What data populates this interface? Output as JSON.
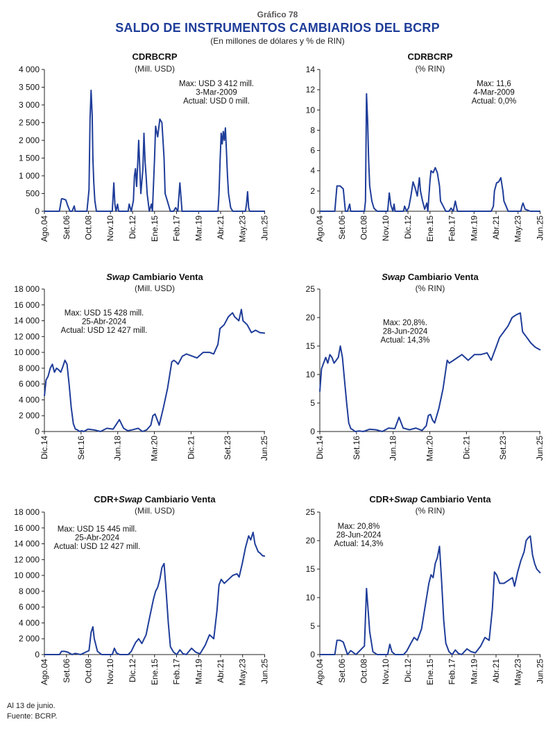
{
  "header": {
    "kicker": "Gráfico 78",
    "title": "SALDO DE INSTRUMENTOS CAMBIARIOS DEL BCRP",
    "subtitle": "(En millones de dólares y % de RIN)"
  },
  "footer": {
    "note": "Al 13 de junio.",
    "source": "Fuente: BCRP."
  },
  "colors": {
    "line": "#1f3d99",
    "axis": "#222222",
    "title": "#1f3d99"
  },
  "chart_data": [
    {
      "type": "line",
      "title": "CDRBCRP",
      "title_italic": "",
      "unit": "(Mill. USD)",
      "ylim": [
        0,
        4000
      ],
      "yticks": [
        0,
        500,
        1000,
        1500,
        2000,
        2500,
        3000,
        3500,
        4000
      ],
      "ytick_labels": [
        "0",
        "500",
        "1 000",
        "1 500",
        "2 000",
        "2 500",
        "3 000",
        "3 500",
        "4 000"
      ],
      "xlim": [
        2004.58,
        2025.45
      ],
      "xtick_positions": [
        2004.58,
        2006.67,
        2008.75,
        2010.83,
        2012.92,
        2015.0,
        2017.08,
        2019.17,
        2021.25,
        2023.33,
        2025.42
      ],
      "xtick_labels": [
        "Ago.04",
        "Set.06",
        "Oct.08",
        "Nov.10",
        "Dic.12",
        "Ene.15",
        "Feb.17",
        "Mar.19",
        "Abr.21",
        "May.23",
        "Jun.25"
      ],
      "annotation": [
        "Max: USD 3 412 mill.",
        "3-Mar-2009",
        "Actual: USD 0 mill."
      ],
      "x": [
        2004.58,
        2006.0,
        2006.2,
        2006.3,
        2006.6,
        2006.8,
        2007.0,
        2007.2,
        2007.4,
        2007.5,
        2007.6,
        2008.0,
        2008.3,
        2008.6,
        2008.8,
        2008.9,
        2009.0,
        2009.1,
        2009.17,
        2009.25,
        2009.35,
        2009.5,
        2009.7,
        2009.9,
        2010.2,
        2010.5,
        2011.0,
        2011.15,
        2011.25,
        2011.35,
        2011.5,
        2011.6,
        2011.7,
        2011.8,
        2012.0,
        2012.3,
        2012.5,
        2012.6,
        2012.8,
        2013.0,
        2013.1,
        2013.2,
        2013.3,
        2013.4,
        2013.5,
        2013.7,
        2013.9,
        2014.0,
        2014.1,
        2014.2,
        2014.3,
        2014.5,
        2014.7,
        2014.8,
        2015.0,
        2015.1,
        2015.3,
        2015.5,
        2015.7,
        2015.9,
        2016.0,
        2016.2,
        2016.5,
        2016.8,
        2017.0,
        2017.2,
        2017.4,
        2017.6,
        2017.8,
        2018.0,
        2018.3,
        2018.6,
        2019.0,
        2019.5,
        2020.0,
        2020.5,
        2020.8,
        2021.0,
        2021.1,
        2021.2,
        2021.3,
        2021.4,
        2021.5,
        2021.6,
        2021.7,
        2021.8,
        2021.9,
        2022.0,
        2022.2,
        2022.4,
        2022.6,
        2022.8,
        2023.0,
        2023.3,
        2023.6,
        2023.7,
        2023.8,
        2023.9,
        2024.0,
        2024.3,
        2024.6,
        2025.0,
        2025.45
      ],
      "y": [
        0,
        0,
        350,
        350,
        320,
        150,
        0,
        0,
        150,
        0,
        0,
        0,
        0,
        0,
        600,
        2600,
        3412,
        2700,
        1500,
        800,
        300,
        0,
        0,
        0,
        0,
        0,
        0,
        800,
        200,
        0,
        200,
        0,
        0,
        0,
        0,
        0,
        0,
        200,
        0,
        300,
        1000,
        1200,
        700,
        1300,
        2000,
        500,
        1200,
        2200,
        1400,
        1000,
        500,
        0,
        200,
        0,
        1500,
        2400,
        2100,
        2600,
        2500,
        1500,
        500,
        300,
        0,
        0,
        100,
        0,
        800,
        0,
        0,
        0,
        0,
        0,
        0,
        0,
        0,
        0,
        0,
        0,
        500,
        1400,
        2200,
        1900,
        2250,
        2000,
        2350,
        1700,
        1000,
        500,
        100,
        0,
        0,
        0,
        0,
        0,
        0,
        200,
        550,
        100,
        0,
        0,
        0,
        0,
        0
      ]
    },
    {
      "type": "line",
      "title": "CDRBCRP",
      "title_italic": "",
      "unit": "(% RIN)",
      "ylim": [
        0,
        14
      ],
      "yticks": [
        0,
        2,
        4,
        6,
        8,
        10,
        12,
        14
      ],
      "ytick_labels": [
        "0",
        "2",
        "4",
        "6",
        "8",
        "10",
        "12",
        "14"
      ],
      "xlim": [
        2004.58,
        2025.45
      ],
      "xtick_positions": [
        2004.58,
        2006.67,
        2008.75,
        2010.83,
        2012.92,
        2015.0,
        2017.08,
        2019.17,
        2021.25,
        2023.33,
        2025.42
      ],
      "xtick_labels": [
        "Ago.04",
        "Set.06",
        "Oct.08",
        "Nov.10",
        "Dic.12",
        "Ene.15",
        "Feb.17",
        "Mar.19",
        "Abr.21",
        "May.23",
        "Jun.25"
      ],
      "annotation": [
        "Max: 11,6",
        "4-Mar-2009",
        "Actual: 0,0%"
      ],
      "x": [
        2004.58,
        2006.0,
        2006.2,
        2006.5,
        2006.8,
        2007.0,
        2007.2,
        2007.4,
        2007.5,
        2008.0,
        2008.5,
        2008.8,
        2008.9,
        2009.0,
        2009.1,
        2009.2,
        2009.3,
        2009.5,
        2009.7,
        2010.0,
        2011.0,
        2011.15,
        2011.3,
        2011.5,
        2011.6,
        2011.7,
        2012.0,
        2012.5,
        2012.6,
        2012.8,
        2013.0,
        2013.2,
        2013.4,
        2013.6,
        2013.8,
        2014.0,
        2014.1,
        2014.3,
        2014.5,
        2014.7,
        2014.8,
        2015.0,
        2015.1,
        2015.3,
        2015.5,
        2015.7,
        2015.9,
        2016.0,
        2016.2,
        2016.5,
        2016.8,
        2017.0,
        2017.2,
        2017.4,
        2017.6,
        2017.8,
        2018.5,
        2019.0,
        2020.0,
        2020.8,
        2021.0,
        2021.1,
        2021.3,
        2021.5,
        2021.7,
        2021.9,
        2022.0,
        2022.2,
        2022.4,
        2022.6,
        2023.0,
        2023.6,
        2023.7,
        2023.8,
        2024.0,
        2024.5,
        2025.0,
        2025.45
      ],
      "y": [
        0,
        0,
        2.5,
        2.5,
        2.2,
        0,
        0,
        0.7,
        0,
        0,
        0,
        0,
        1.0,
        11.6,
        9.0,
        5.0,
        2.5,
        1.0,
        0.3,
        0,
        0,
        1.8,
        0.6,
        0,
        0.7,
        0,
        0,
        0,
        0.5,
        0,
        0.4,
        1.5,
        2.9,
        2.3,
        1.5,
        3.3,
        2.0,
        1.0,
        0.2,
        0.8,
        0,
        3.0,
        4.0,
        3.8,
        4.3,
        3.8,
        2.5,
        1.0,
        0.6,
        0,
        0,
        0.3,
        0,
        1.0,
        0,
        0,
        0,
        0,
        0,
        0,
        0.5,
        2.0,
        2.8,
        2.9,
        3.3,
        2.0,
        1.0,
        0.5,
        0,
        0,
        0,
        0,
        0.5,
        0.8,
        0.2,
        0,
        0,
        0
      ]
    },
    {
      "type": "line",
      "title": "Cambiario Venta",
      "title_italic": "Swap",
      "unit": "(Mill. USD)",
      "ylim": [
        0,
        18000
      ],
      "yticks": [
        0,
        2000,
        4000,
        6000,
        8000,
        10000,
        12000,
        14000,
        16000,
        18000
      ],
      "ytick_labels": [
        "0",
        "2 000",
        "4 000",
        "6 000",
        "8 000",
        "10 000",
        "12 000",
        "14 000",
        "16 000",
        "18 000"
      ],
      "xlim": [
        2014.92,
        2025.45
      ],
      "xtick_positions": [
        2014.92,
        2016.67,
        2018.42,
        2020.17,
        2021.92,
        2023.67,
        2025.42
      ],
      "xtick_labels": [
        "Dic.14",
        "Set.16",
        "Jun.18",
        "Mar.20",
        "Dic.21",
        "Set.23",
        "Jun.25"
      ],
      "annotation": [
        "Max: USD 15 428 mill.",
        "25-Abr-2024",
        "Actual: USD 12 427 mill."
      ],
      "x": [
        2014.92,
        2015.0,
        2015.1,
        2015.2,
        2015.3,
        2015.4,
        2015.5,
        2015.6,
        2015.7,
        2015.8,
        2015.9,
        2016.0,
        2016.1,
        2016.2,
        2016.3,
        2016.4,
        2016.5,
        2016.6,
        2016.7,
        2016.8,
        2017.0,
        2017.3,
        2017.6,
        2017.9,
        2018.2,
        2018.5,
        2018.7,
        2018.9,
        2019.1,
        2019.4,
        2019.6,
        2019.8,
        2020.0,
        2020.1,
        2020.2,
        2020.3,
        2020.4,
        2020.6,
        2020.8,
        2021.0,
        2021.1,
        2021.2,
        2021.3,
        2021.4,
        2021.5,
        2021.7,
        2022.0,
        2022.2,
        2022.5,
        2022.8,
        2023.0,
        2023.2,
        2023.3,
        2023.5,
        2023.7,
        2023.9,
        2024.0,
        2024.2,
        2024.32,
        2024.4,
        2024.6,
        2024.8,
        2025.0,
        2025.2,
        2025.45
      ],
      "y": [
        4500,
        6500,
        7000,
        8000,
        8500,
        7500,
        8000,
        7800,
        7500,
        8200,
        9000,
        8500,
        6000,
        3000,
        1000,
        300,
        200,
        0,
        100,
        0,
        300,
        200,
        0,
        400,
        300,
        1500,
        400,
        100,
        200,
        400,
        0,
        200,
        800,
        2000,
        2200,
        1500,
        800,
        3000,
        5500,
        8800,
        9000,
        8800,
        8500,
        9000,
        9500,
        9800,
        9500,
        9300,
        10000,
        10000,
        9800,
        11000,
        13000,
        13500,
        14500,
        15000,
        14500,
        14000,
        15428,
        14000,
        13500,
        12500,
        12800,
        12500,
        12427
      ]
    },
    {
      "type": "line",
      "title": "Cambiario Venta",
      "title_italic": "Swap",
      "unit": "(% RIN)",
      "ylim": [
        0,
        25
      ],
      "yticks": [
        0,
        5,
        10,
        15,
        20,
        25
      ],
      "ytick_labels": [
        "0",
        "5",
        "10",
        "15",
        "20",
        "25"
      ],
      "xlim": [
        2014.92,
        2025.45
      ],
      "xtick_positions": [
        2014.92,
        2016.67,
        2018.42,
        2020.17,
        2021.92,
        2023.67,
        2025.42
      ],
      "xtick_labels": [
        "Dic.14",
        "Set.16",
        "Jun.18",
        "Mar.20",
        "Dic.21",
        "Set.23",
        "Jun.25"
      ],
      "annotation": [
        "Max: 20,8%.",
        "28-Jun-2024",
        "Actual: 14,3%"
      ],
      "x": [
        2014.92,
        2015.0,
        2015.1,
        2015.2,
        2015.3,
        2015.4,
        2015.5,
        2015.6,
        2015.7,
        2015.8,
        2015.9,
        2016.0,
        2016.1,
        2016.2,
        2016.3,
        2016.4,
        2016.5,
        2016.6,
        2016.8,
        2017.0,
        2017.3,
        2017.6,
        2017.9,
        2018.2,
        2018.5,
        2018.7,
        2018.9,
        2019.2,
        2019.5,
        2019.8,
        2020.0,
        2020.1,
        2020.2,
        2020.3,
        2020.4,
        2020.6,
        2020.8,
        2021.0,
        2021.1,
        2021.3,
        2021.5,
        2021.7,
        2022.0,
        2022.3,
        2022.6,
        2022.9,
        2023.1,
        2023.3,
        2023.5,
        2023.7,
        2023.9,
        2024.1,
        2024.3,
        2024.49,
        2024.6,
        2024.8,
        2025.0,
        2025.2,
        2025.45
      ],
      "y": [
        7,
        11,
        12,
        13,
        12,
        13.5,
        13,
        12,
        12.5,
        13,
        15,
        13,
        9,
        5,
        1.5,
        0.5,
        0.3,
        0,
        0.1,
        0,
        0.4,
        0.3,
        0,
        0.6,
        0.5,
        2.5,
        0.6,
        0.3,
        0.6,
        0.2,
        1.0,
        2.8,
        3.0,
        2.0,
        1.5,
        4.0,
        7.5,
        12.5,
        12.0,
        12.5,
        13.0,
        13.5,
        12.5,
        13.5,
        13.5,
        13.8,
        12.5,
        14.5,
        16.5,
        17.5,
        18.5,
        20.0,
        20.5,
        20.8,
        17.5,
        16.5,
        15.5,
        14.8,
        14.3
      ]
    },
    {
      "type": "line",
      "title": "Cambiario Venta",
      "title_prefix": "CDR+",
      "title_italic": "Swap",
      "unit": "(Mill. USD)",
      "ylim": [
        0,
        18000
      ],
      "yticks": [
        0,
        2000,
        4000,
        6000,
        8000,
        10000,
        12000,
        14000,
        16000,
        18000
      ],
      "ytick_labels": [
        "0",
        "2 000",
        "4 000",
        "6 000",
        "8 000",
        "10 000",
        "12 000",
        "14 000",
        "16 000",
        "18 000"
      ],
      "xlim": [
        2004.58,
        2025.45
      ],
      "xtick_positions": [
        2004.58,
        2006.67,
        2008.75,
        2010.83,
        2012.92,
        2015.0,
        2017.08,
        2019.17,
        2021.25,
        2023.33,
        2025.42
      ],
      "xtick_labels": [
        "Ago.04",
        "Set.06",
        "Oct.08",
        "Nov.10",
        "Dic.12",
        "Ene.15",
        "Feb.17",
        "Mar.19",
        "Abr.21",
        "May.23",
        "Jun.25"
      ],
      "annotation": [
        "Max: USD 15 445 mill.",
        "25-Abr-2024",
        "Actual: USD 12 427 mill."
      ],
      "x": [
        2004.58,
        2006.0,
        2006.2,
        2006.5,
        2006.8,
        2007.2,
        2007.5,
        2008.0,
        2008.8,
        2009.0,
        2009.17,
        2009.3,
        2009.6,
        2010.0,
        2011.0,
        2011.2,
        2011.4,
        2011.7,
        2012.5,
        2012.8,
        2013.2,
        2013.5,
        2013.8,
        2014.2,
        2014.5,
        2014.9,
        2015.1,
        2015.3,
        2015.5,
        2015.7,
        2015.9,
        2016.1,
        2016.3,
        2016.5,
        2016.8,
        2017.1,
        2017.4,
        2017.7,
        2018.0,
        2018.5,
        2018.9,
        2019.3,
        2019.8,
        2020.2,
        2020.6,
        2020.9,
        2021.1,
        2021.3,
        2021.6,
        2022.0,
        2022.4,
        2022.8,
        2023.0,
        2023.3,
        2023.6,
        2023.9,
        2024.1,
        2024.32,
        2024.5,
        2024.8,
        2025.0,
        2025.2,
        2025.45
      ],
      "y": [
        0,
        0,
        400,
        400,
        300,
        0,
        150,
        0,
        500,
        2800,
        3500,
        2000,
        400,
        0,
        0,
        800,
        200,
        0,
        0,
        400,
        1500,
        2000,
        1400,
        2500,
        4500,
        7000,
        8000,
        8500,
        9500,
        11000,
        11500,
        8000,
        4000,
        1000,
        300,
        0,
        600,
        100,
        0,
        800,
        300,
        100,
        1200,
        2500,
        2000,
        5500,
        8800,
        9500,
        9000,
        9500,
        10000,
        10200,
        9800,
        11500,
        13500,
        15000,
        14500,
        15445,
        14000,
        13000,
        12800,
        12500,
        12427
      ]
    },
    {
      "type": "line",
      "title": "Cambiario Venta",
      "title_prefix": "CDR+",
      "title_italic": "Swap",
      "unit": "(% RIN)",
      "ylim": [
        0,
        25
      ],
      "yticks": [
        0,
        5,
        10,
        15,
        20,
        25
      ],
      "ytick_labels": [
        "0",
        "5",
        "10",
        "15",
        "20",
        "25"
      ],
      "xlim": [
        2004.58,
        2025.45
      ],
      "xtick_positions": [
        2004.58,
        2006.67,
        2008.75,
        2010.83,
        2012.92,
        2015.0,
        2017.08,
        2019.17,
        2021.25,
        2023.33,
        2025.42
      ],
      "xtick_labels": [
        "Ago.04",
        "Set.06",
        "Oct.08",
        "Nov.10",
        "Dic.12",
        "Ene.15",
        "Feb.17",
        "Mar.19",
        "Abr.21",
        "May.23",
        "Jun.25"
      ],
      "annotation": [
        "Max: 20,8%",
        "28-Jun-2024",
        "Actual: 14,3%"
      ],
      "x": [
        2004.58,
        2006.0,
        2006.2,
        2006.5,
        2006.8,
        2007.2,
        2007.5,
        2008.0,
        2008.8,
        2009.0,
        2009.1,
        2009.3,
        2009.6,
        2010.0,
        2011.0,
        2011.2,
        2011.4,
        2011.7,
        2012.5,
        2012.8,
        2013.2,
        2013.5,
        2013.8,
        2014.2,
        2014.5,
        2014.9,
        2015.1,
        2015.3,
        2015.5,
        2015.7,
        2015.9,
        2016.1,
        2016.3,
        2016.5,
        2016.8,
        2017.1,
        2017.4,
        2017.7,
        2018.0,
        2018.5,
        2018.9,
        2019.3,
        2019.8,
        2020.2,
        2020.6,
        2020.9,
        2021.1,
        2021.3,
        2021.6,
        2022.0,
        2022.4,
        2022.8,
        2023.0,
        2023.3,
        2023.6,
        2023.9,
        2024.1,
        2024.3,
        2024.49,
        2024.7,
        2024.9,
        2025.1,
        2025.45
      ],
      "y": [
        0,
        0,
        2.5,
        2.5,
        2.2,
        0,
        0.7,
        0,
        1.5,
        11.6,
        9.0,
        4.0,
        0.5,
        0,
        0,
        1.8,
        0.5,
        0,
        0,
        0.6,
        2.0,
        3.0,
        2.5,
        4.5,
        8.0,
        12.5,
        14.0,
        13.5,
        16.0,
        17.0,
        19.0,
        13.0,
        6.0,
        2.0,
        0.5,
        0,
        0.8,
        0.2,
        0,
        1.0,
        0.5,
        0.3,
        1.5,
        3.0,
        2.5,
        8.0,
        14.5,
        14.0,
        12.5,
        12.5,
        13.0,
        13.5,
        12.0,
        14.5,
        16.5,
        18.0,
        20.0,
        20.5,
        20.8,
        17.5,
        16.0,
        15.0,
        14.3
      ]
    }
  ]
}
